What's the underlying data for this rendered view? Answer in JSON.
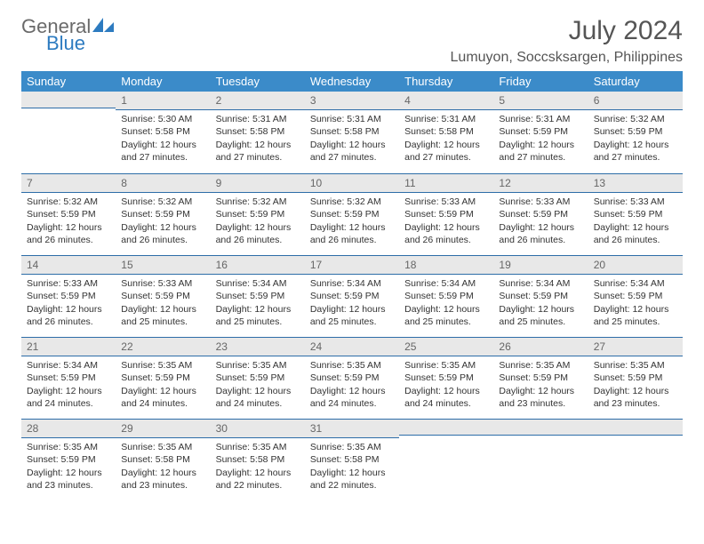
{
  "brand": {
    "part1": "General",
    "part2": "Blue"
  },
  "title": "July 2024",
  "location": "Lumuyon, Soccsksargen, Philippines",
  "colors": {
    "header_bg": "#3b8bc9",
    "header_text": "#ffffff",
    "daynum_bg": "#e8e8e8",
    "daynum_border": "#2d6da8",
    "brand_gray": "#6a6a6a",
    "brand_blue": "#2d7bc0",
    "body_text": "#333333"
  },
  "weekdays": [
    "Sunday",
    "Monday",
    "Tuesday",
    "Wednesday",
    "Thursday",
    "Friday",
    "Saturday"
  ],
  "weeks": [
    [
      null,
      {
        "d": "1",
        "sr": "Sunrise: 5:30 AM",
        "ss": "Sunset: 5:58 PM",
        "dl": "Daylight: 12 hours and 27 minutes."
      },
      {
        "d": "2",
        "sr": "Sunrise: 5:31 AM",
        "ss": "Sunset: 5:58 PM",
        "dl": "Daylight: 12 hours and 27 minutes."
      },
      {
        "d": "3",
        "sr": "Sunrise: 5:31 AM",
        "ss": "Sunset: 5:58 PM",
        "dl": "Daylight: 12 hours and 27 minutes."
      },
      {
        "d": "4",
        "sr": "Sunrise: 5:31 AM",
        "ss": "Sunset: 5:58 PM",
        "dl": "Daylight: 12 hours and 27 minutes."
      },
      {
        "d": "5",
        "sr": "Sunrise: 5:31 AM",
        "ss": "Sunset: 5:59 PM",
        "dl": "Daylight: 12 hours and 27 minutes."
      },
      {
        "d": "6",
        "sr": "Sunrise: 5:32 AM",
        "ss": "Sunset: 5:59 PM",
        "dl": "Daylight: 12 hours and 27 minutes."
      }
    ],
    [
      {
        "d": "7",
        "sr": "Sunrise: 5:32 AM",
        "ss": "Sunset: 5:59 PM",
        "dl": "Daylight: 12 hours and 26 minutes."
      },
      {
        "d": "8",
        "sr": "Sunrise: 5:32 AM",
        "ss": "Sunset: 5:59 PM",
        "dl": "Daylight: 12 hours and 26 minutes."
      },
      {
        "d": "9",
        "sr": "Sunrise: 5:32 AM",
        "ss": "Sunset: 5:59 PM",
        "dl": "Daylight: 12 hours and 26 minutes."
      },
      {
        "d": "10",
        "sr": "Sunrise: 5:32 AM",
        "ss": "Sunset: 5:59 PM",
        "dl": "Daylight: 12 hours and 26 minutes."
      },
      {
        "d": "11",
        "sr": "Sunrise: 5:33 AM",
        "ss": "Sunset: 5:59 PM",
        "dl": "Daylight: 12 hours and 26 minutes."
      },
      {
        "d": "12",
        "sr": "Sunrise: 5:33 AM",
        "ss": "Sunset: 5:59 PM",
        "dl": "Daylight: 12 hours and 26 minutes."
      },
      {
        "d": "13",
        "sr": "Sunrise: 5:33 AM",
        "ss": "Sunset: 5:59 PM",
        "dl": "Daylight: 12 hours and 26 minutes."
      }
    ],
    [
      {
        "d": "14",
        "sr": "Sunrise: 5:33 AM",
        "ss": "Sunset: 5:59 PM",
        "dl": "Daylight: 12 hours and 26 minutes."
      },
      {
        "d": "15",
        "sr": "Sunrise: 5:33 AM",
        "ss": "Sunset: 5:59 PM",
        "dl": "Daylight: 12 hours and 25 minutes."
      },
      {
        "d": "16",
        "sr": "Sunrise: 5:34 AM",
        "ss": "Sunset: 5:59 PM",
        "dl": "Daylight: 12 hours and 25 minutes."
      },
      {
        "d": "17",
        "sr": "Sunrise: 5:34 AM",
        "ss": "Sunset: 5:59 PM",
        "dl": "Daylight: 12 hours and 25 minutes."
      },
      {
        "d": "18",
        "sr": "Sunrise: 5:34 AM",
        "ss": "Sunset: 5:59 PM",
        "dl": "Daylight: 12 hours and 25 minutes."
      },
      {
        "d": "19",
        "sr": "Sunrise: 5:34 AM",
        "ss": "Sunset: 5:59 PM",
        "dl": "Daylight: 12 hours and 25 minutes."
      },
      {
        "d": "20",
        "sr": "Sunrise: 5:34 AM",
        "ss": "Sunset: 5:59 PM",
        "dl": "Daylight: 12 hours and 25 minutes."
      }
    ],
    [
      {
        "d": "21",
        "sr": "Sunrise: 5:34 AM",
        "ss": "Sunset: 5:59 PM",
        "dl": "Daylight: 12 hours and 24 minutes."
      },
      {
        "d": "22",
        "sr": "Sunrise: 5:35 AM",
        "ss": "Sunset: 5:59 PM",
        "dl": "Daylight: 12 hours and 24 minutes."
      },
      {
        "d": "23",
        "sr": "Sunrise: 5:35 AM",
        "ss": "Sunset: 5:59 PM",
        "dl": "Daylight: 12 hours and 24 minutes."
      },
      {
        "d": "24",
        "sr": "Sunrise: 5:35 AM",
        "ss": "Sunset: 5:59 PM",
        "dl": "Daylight: 12 hours and 24 minutes."
      },
      {
        "d": "25",
        "sr": "Sunrise: 5:35 AM",
        "ss": "Sunset: 5:59 PM",
        "dl": "Daylight: 12 hours and 24 minutes."
      },
      {
        "d": "26",
        "sr": "Sunrise: 5:35 AM",
        "ss": "Sunset: 5:59 PM",
        "dl": "Daylight: 12 hours and 23 minutes."
      },
      {
        "d": "27",
        "sr": "Sunrise: 5:35 AM",
        "ss": "Sunset: 5:59 PM",
        "dl": "Daylight: 12 hours and 23 minutes."
      }
    ],
    [
      {
        "d": "28",
        "sr": "Sunrise: 5:35 AM",
        "ss": "Sunset: 5:59 PM",
        "dl": "Daylight: 12 hours and 23 minutes."
      },
      {
        "d": "29",
        "sr": "Sunrise: 5:35 AM",
        "ss": "Sunset: 5:58 PM",
        "dl": "Daylight: 12 hours and 23 minutes."
      },
      {
        "d": "30",
        "sr": "Sunrise: 5:35 AM",
        "ss": "Sunset: 5:58 PM",
        "dl": "Daylight: 12 hours and 22 minutes."
      },
      {
        "d": "31",
        "sr": "Sunrise: 5:35 AM",
        "ss": "Sunset: 5:58 PM",
        "dl": "Daylight: 12 hours and 22 minutes."
      },
      null,
      null,
      null
    ]
  ]
}
